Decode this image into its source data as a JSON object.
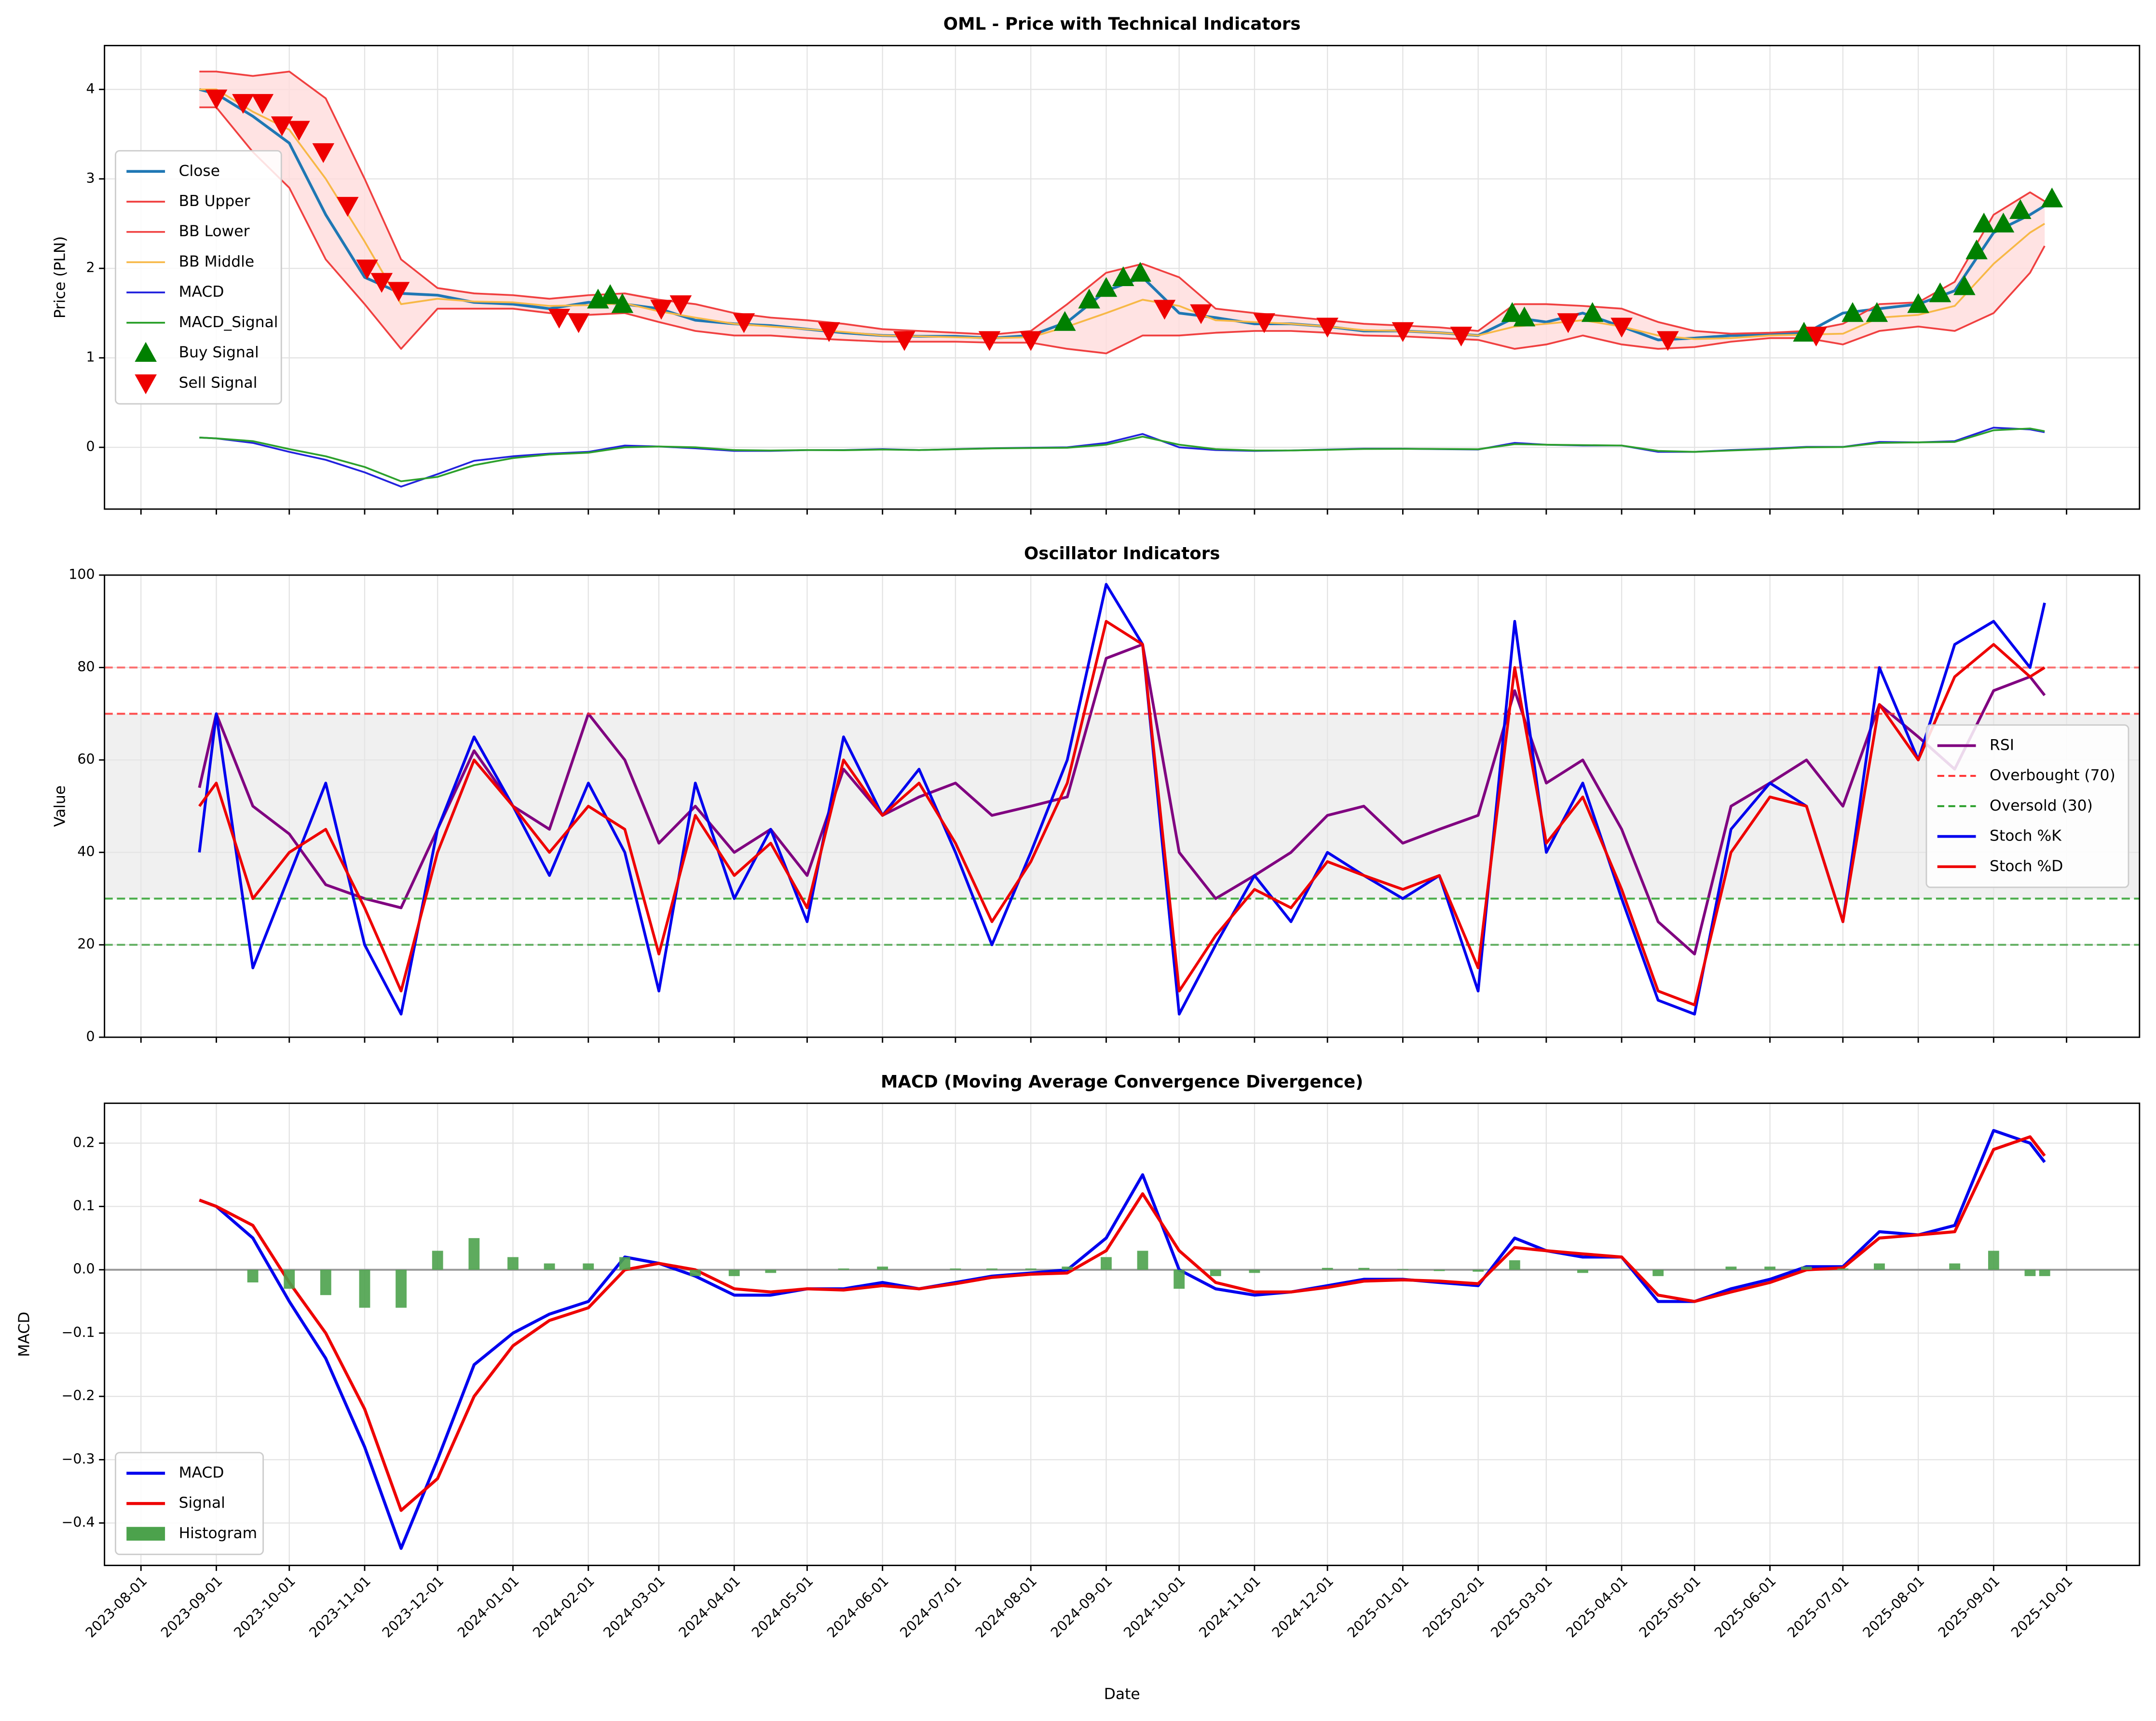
{
  "chart_data": [
    {
      "type": "line",
      "title": "OML - Price with Technical Indicators",
      "ylabel": "Price (PLN)",
      "grid": true,
      "legend": "center left",
      "xlim": [
        "2023-07-17",
        "2025-10-31"
      ],
      "x": [
        "2023-08-25",
        "2023-09-01",
        "2023-09-16",
        "2023-10-01",
        "2023-10-16",
        "2023-11-01",
        "2023-11-16",
        "2023-12-01",
        "2023-12-16",
        "2024-01-01",
        "2024-01-16",
        "2024-02-01",
        "2024-02-16",
        "2024-03-01",
        "2024-03-16",
        "2024-04-01",
        "2024-04-16",
        "2024-05-01",
        "2024-05-16",
        "2024-06-01",
        "2024-06-16",
        "2024-07-01",
        "2024-07-16",
        "2024-08-01",
        "2024-08-16",
        "2024-09-01",
        "2024-09-16",
        "2024-10-01",
        "2024-10-16",
        "2024-11-01",
        "2024-11-16",
        "2024-12-01",
        "2024-12-16",
        "2025-01-01",
        "2025-01-16",
        "2025-02-01",
        "2025-02-16",
        "2025-03-01",
        "2025-03-16",
        "2025-04-01",
        "2025-04-16",
        "2025-05-01",
        "2025-05-16",
        "2025-06-01",
        "2025-06-16",
        "2025-07-01",
        "2025-07-16",
        "2025-08-01",
        "2025-08-16",
        "2025-09-01",
        "2025-09-16",
        "2025-09-22"
      ],
      "ylim": [
        -0.69,
        4.49
      ],
      "yticks": [
        0,
        1,
        2,
        3,
        4
      ],
      "fill_between": [
        1,
        2
      ],
      "fill_color": "#ffdcdc",
      "series": [
        {
          "name": "Close",
          "kind": "line",
          "color": "#1f77b4",
          "width": 2,
          "values": [
            4.0,
            3.95,
            3.7,
            3.4,
            2.6,
            1.9,
            1.72,
            1.7,
            1.62,
            1.6,
            1.55,
            1.62,
            1.6,
            1.55,
            1.42,
            1.38,
            1.36,
            1.32,
            1.28,
            1.25,
            1.24,
            1.24,
            1.22,
            1.25,
            1.4,
            1.75,
            1.9,
            1.5,
            1.45,
            1.38,
            1.38,
            1.35,
            1.3,
            1.3,
            1.28,
            1.25,
            1.45,
            1.4,
            1.5,
            1.35,
            1.2,
            1.22,
            1.25,
            1.26,
            1.28,
            1.5,
            1.55,
            1.6,
            1.75,
            2.4,
            2.6,
            2.7
          ]
        },
        {
          "name": "BB Upper",
          "kind": "line",
          "color": "#f04040",
          "width": 1.3,
          "values": [
            4.2,
            4.2,
            4.15,
            4.2,
            3.9,
            3.0,
            2.1,
            1.78,
            1.72,
            1.7,
            1.66,
            1.7,
            1.72,
            1.65,
            1.6,
            1.5,
            1.45,
            1.42,
            1.38,
            1.32,
            1.3,
            1.28,
            1.26,
            1.3,
            1.6,
            1.95,
            2.05,
            1.9,
            1.55,
            1.5,
            1.46,
            1.42,
            1.38,
            1.36,
            1.34,
            1.3,
            1.6,
            1.6,
            1.58,
            1.55,
            1.4,
            1.3,
            1.27,
            1.28,
            1.3,
            1.38,
            1.6,
            1.62,
            1.85,
            2.6,
            2.85,
            2.75
          ]
        },
        {
          "name": "BB Lower",
          "kind": "line",
          "color": "#f04040",
          "width": 1.3,
          "values": [
            3.8,
            3.8,
            3.3,
            2.9,
            2.1,
            1.6,
            1.1,
            1.55,
            1.55,
            1.55,
            1.5,
            1.48,
            1.5,
            1.4,
            1.3,
            1.25,
            1.25,
            1.22,
            1.2,
            1.18,
            1.18,
            1.18,
            1.17,
            1.17,
            1.1,
            1.05,
            1.25,
            1.25,
            1.28,
            1.3,
            1.3,
            1.28,
            1.25,
            1.24,
            1.22,
            1.2,
            1.1,
            1.15,
            1.25,
            1.15,
            1.1,
            1.12,
            1.18,
            1.22,
            1.22,
            1.15,
            1.3,
            1.35,
            1.3,
            1.5,
            1.95,
            2.25
          ]
        },
        {
          "name": "BB Middle",
          "kind": "line",
          "color": "#f7b846",
          "width": 1.3,
          "values": [
            4.0,
            4.0,
            3.75,
            3.55,
            3.0,
            2.3,
            1.6,
            1.66,
            1.63,
            1.62,
            1.58,
            1.59,
            1.61,
            1.52,
            1.45,
            1.38,
            1.35,
            1.32,
            1.29,
            1.25,
            1.24,
            1.23,
            1.22,
            1.23,
            1.35,
            1.5,
            1.65,
            1.58,
            1.42,
            1.4,
            1.38,
            1.35,
            1.31,
            1.3,
            1.28,
            1.25,
            1.35,
            1.38,
            1.42,
            1.35,
            1.25,
            1.21,
            1.22,
            1.25,
            1.26,
            1.27,
            1.45,
            1.48,
            1.58,
            2.05,
            2.4,
            2.5
          ]
        },
        {
          "name": "MACD",
          "kind": "line",
          "color": "#2222dd",
          "width": 1.3,
          "values": [
            0.11,
            0.1,
            0.05,
            -0.05,
            -0.14,
            -0.28,
            -0.44,
            -0.3,
            -0.15,
            -0.1,
            -0.07,
            -0.05,
            0.02,
            0.01,
            -0.01,
            -0.04,
            -0.04,
            -0.03,
            -0.03,
            -0.02,
            -0.03,
            -0.02,
            -0.01,
            -0.005,
            0.0,
            0.05,
            0.15,
            0.0,
            -0.03,
            -0.04,
            -0.035,
            -0.025,
            -0.015,
            -0.015,
            -0.02,
            -0.025,
            0.05,
            0.03,
            0.02,
            0.02,
            -0.05,
            -0.05,
            -0.03,
            -0.015,
            0.005,
            0.005,
            0.06,
            0.055,
            0.07,
            0.22,
            0.2,
            0.17
          ]
        },
        {
          "name": "MACD_Signal",
          "kind": "line",
          "color": "#2ca02c",
          "width": 1.3,
          "values": [
            0.11,
            0.1,
            0.07,
            -0.02,
            -0.1,
            -0.22,
            -0.38,
            -0.33,
            -0.2,
            -0.12,
            -0.08,
            -0.06,
            0.0,
            0.01,
            0.0,
            -0.03,
            -0.035,
            -0.03,
            -0.032,
            -0.025,
            -0.03,
            -0.022,
            -0.012,
            -0.007,
            -0.005,
            0.03,
            0.12,
            0.03,
            -0.02,
            -0.035,
            -0.035,
            -0.028,
            -0.018,
            -0.016,
            -0.018,
            -0.022,
            0.035,
            0.03,
            0.025,
            0.02,
            -0.04,
            -0.05,
            -0.035,
            -0.02,
            0.0,
            0.003,
            0.05,
            0.055,
            0.06,
            0.19,
            0.21,
            0.18
          ]
        },
        {
          "name": "Buy Signal",
          "kind": "scatter",
          "marker": "up",
          "color": "#008000",
          "x": [
            "2024-02-05",
            "2024-02-10",
            "2024-02-15",
            "2024-08-15",
            "2024-08-25",
            "2024-09-01",
            "2024-09-08",
            "2024-09-15",
            "2025-02-15",
            "2025-02-20",
            "2025-03-20",
            "2025-06-15",
            "2025-07-05",
            "2025-07-15",
            "2025-08-01",
            "2025-08-10",
            "2025-08-20",
            "2025-08-25",
            "2025-08-28",
            "2025-09-05",
            "2025-09-12",
            "2025-09-25"
          ],
          "values": [
            1.65,
            1.7,
            1.6,
            1.4,
            1.65,
            1.78,
            1.9,
            1.95,
            1.5,
            1.45,
            1.5,
            1.28,
            1.5,
            1.5,
            1.6,
            1.72,
            1.8,
            2.2,
            2.5,
            2.5,
            2.65,
            2.78
          ]
        },
        {
          "name": "Sell Signal",
          "kind": "scatter",
          "marker": "down",
          "color": "#ee0000",
          "x": [
            "2023-09-01",
            "2023-09-12",
            "2023-09-20",
            "2023-09-28",
            "2023-10-05",
            "2023-10-15",
            "2023-10-25",
            "2023-11-02",
            "2023-11-08",
            "2023-11-15",
            "2024-01-20",
            "2024-01-28",
            "2024-03-02",
            "2024-03-10",
            "2024-04-05",
            "2024-05-10",
            "2024-06-10",
            "2024-07-15",
            "2024-08-01",
            "2024-09-25",
            "2024-10-10",
            "2024-11-05",
            "2024-12-01",
            "2025-01-01",
            "2025-01-25",
            "2025-03-10",
            "2025-04-01",
            "2025-04-20",
            "2025-06-20"
          ],
          "values": [
            3.9,
            3.85,
            3.85,
            3.6,
            3.55,
            3.3,
            2.7,
            2.0,
            1.85,
            1.75,
            1.45,
            1.4,
            1.55,
            1.6,
            1.4,
            1.3,
            1.2,
            1.2,
            1.2,
            1.55,
            1.5,
            1.4,
            1.35,
            1.3,
            1.25,
            1.4,
            1.35,
            1.2,
            1.25
          ]
        }
      ]
    },
    {
      "type": "line",
      "title": "Oscillator Indicators",
      "ylabel": "Value",
      "grid": true,
      "legend": "center right",
      "shade": true,
      "shade_color": "#e6e6e6",
      "ylim": [
        0,
        100
      ],
      "yticks": [
        0,
        20,
        40,
        60,
        80,
        100
      ],
      "hlines": [
        {
          "value": 80,
          "color": "#ff5050"
        },
        {
          "value": 20,
          "color": "#40a040"
        }
      ],
      "series": [
        {
          "name": "RSI",
          "kind": "line",
          "color": "#800080",
          "width": 2,
          "values": [
            54,
            70,
            50,
            44,
            33,
            30,
            28,
            45,
            62,
            50,
            45,
            70,
            60,
            42,
            50,
            40,
            45,
            35,
            58,
            48,
            52,
            55,
            48,
            50,
            52,
            82,
            85,
            40,
            30,
            35,
            40,
            48,
            50,
            42,
            45,
            48,
            75,
            55,
            60,
            45,
            25,
            18,
            50,
            55,
            60,
            50,
            72,
            65,
            58,
            75,
            78,
            74
          ]
        },
        {
          "name": "Overbought (70)",
          "kind": "hline",
          "color": "#ff3030",
          "value": 70
        },
        {
          "name": "Oversold (30)",
          "kind": "hline",
          "color": "#2ca02c",
          "value": 30
        },
        {
          "name": "Stoch %K",
          "kind": "line",
          "color": "#0000ee",
          "width": 2,
          "values": [
            40,
            70,
            15,
            35,
            55,
            20,
            5,
            45,
            65,
            50,
            35,
            55,
            40,
            10,
            55,
            30,
            45,
            25,
            65,
            48,
            58,
            40,
            20,
            40,
            60,
            98,
            85,
            5,
            20,
            35,
            25,
            40,
            35,
            30,
            35,
            10,
            90,
            40,
            55,
            30,
            8,
            5,
            45,
            55,
            50,
            25,
            80,
            60,
            85,
            90,
            80,
            94
          ]
        },
        {
          "name": "Stoch %D",
          "kind": "line",
          "color": "#ee0000",
          "width": 2,
          "values": [
            50,
            55,
            30,
            40,
            45,
            28,
            10,
            40,
            60,
            50,
            40,
            50,
            45,
            18,
            48,
            35,
            42,
            28,
            60,
            48,
            55,
            42,
            25,
            38,
            55,
            90,
            85,
            10,
            22,
            32,
            28,
            38,
            35,
            32,
            35,
            15,
            80,
            42,
            52,
            32,
            10,
            7,
            40,
            52,
            50,
            25,
            72,
            60,
            78,
            85,
            78,
            80
          ]
        }
      ]
    },
    {
      "type": "line",
      "title": "MACD (Moving Average Convergence Divergence)",
      "ylabel": "MACD",
      "xlabel": "Date",
      "grid": true,
      "legend": "lower left",
      "zero_line": true,
      "ylim": [
        -0.467,
        0.263
      ],
      "yticks": [
        {
          "value": -0.4,
          "label": "−0.4"
        },
        {
          "value": -0.3,
          "label": "−0.3"
        },
        {
          "value": -0.2,
          "label": "−0.2"
        },
        {
          "value": -0.1,
          "label": "−0.1"
        },
        {
          "value": 0,
          "label": "0.0"
        },
        0.1,
        0.2
      ],
      "xticks": [
        "2023-08-01",
        "2023-09-01",
        "2023-10-01",
        "2023-11-01",
        "2023-12-01",
        "2024-01-01",
        "2024-02-01",
        "2024-03-01",
        "2024-04-01",
        "2024-05-01",
        "2024-06-01",
        "2024-07-01",
        "2024-08-01",
        "2024-09-01",
        "2024-10-01",
        "2024-11-01",
        "2024-12-01",
        "2025-01-01",
        "2025-02-01",
        "2025-03-01",
        "2025-04-01",
        "2025-05-01",
        "2025-06-01",
        "2025-07-01",
        "2025-08-01",
        "2025-09-01",
        "2025-10-01"
      ],
      "series": [
        {
          "name": "MACD",
          "kind": "line",
          "color": "#0000ee",
          "width": 2.2,
          "values": [
            0.11,
            0.1,
            0.05,
            -0.05,
            -0.14,
            -0.28,
            -0.44,
            -0.3,
            -0.15,
            -0.1,
            -0.07,
            -0.05,
            0.02,
            0.01,
            -0.01,
            -0.04,
            -0.04,
            -0.03,
            -0.03,
            -0.02,
            -0.03,
            -0.02,
            -0.01,
            -0.005,
            0.0,
            0.05,
            0.15,
            0.0,
            -0.03,
            -0.04,
            -0.035,
            -0.025,
            -0.015,
            -0.015,
            -0.02,
            -0.025,
            0.05,
            0.03,
            0.02,
            0.02,
            -0.05,
            -0.05,
            -0.03,
            -0.015,
            0.005,
            0.005,
            0.06,
            0.055,
            0.07,
            0.22,
            0.2,
            0.17
          ]
        },
        {
          "name": "Signal",
          "kind": "line",
          "color": "#ee0000",
          "width": 2.2,
          "values": [
            0.11,
            0.1,
            0.07,
            -0.02,
            -0.1,
            -0.22,
            -0.38,
            -0.33,
            -0.2,
            -0.12,
            -0.08,
            -0.06,
            0.0,
            0.01,
            0.0,
            -0.03,
            -0.035,
            -0.03,
            -0.032,
            -0.025,
            -0.03,
            -0.022,
            -0.012,
            -0.007,
            -0.005,
            0.03,
            0.12,
            0.03,
            -0.02,
            -0.035,
            -0.035,
            -0.028,
            -0.018,
            -0.016,
            -0.018,
            -0.022,
            0.035,
            0.03,
            0.025,
            0.02,
            -0.04,
            -0.05,
            -0.035,
            -0.02,
            0.0,
            0.003,
            0.05,
            0.055,
            0.06,
            0.19,
            0.21,
            0.18
          ]
        },
        {
          "name": "Histogram",
          "kind": "bar",
          "color": "#4ca24c",
          "values": [
            0,
            0,
            -0.02,
            -0.03,
            -0.04,
            -0.06,
            -0.06,
            0.03,
            0.05,
            0.02,
            0.01,
            0.01,
            0.02,
            0,
            -0.01,
            -0.01,
            -0.005,
            0,
            0.002,
            0.005,
            0,
            0.002,
            0.002,
            0.002,
            0.005,
            0.02,
            0.03,
            -0.03,
            -0.01,
            -0.005,
            0,
            0.003,
            0.003,
            0.001,
            -0.002,
            -0.003,
            0.015,
            0,
            -0.005,
            0,
            -0.01,
            0,
            0.005,
            0.005,
            0.005,
            0.002,
            0.01,
            0,
            0.01,
            0.03,
            -0.01,
            -0.01
          ]
        }
      ]
    }
  ]
}
